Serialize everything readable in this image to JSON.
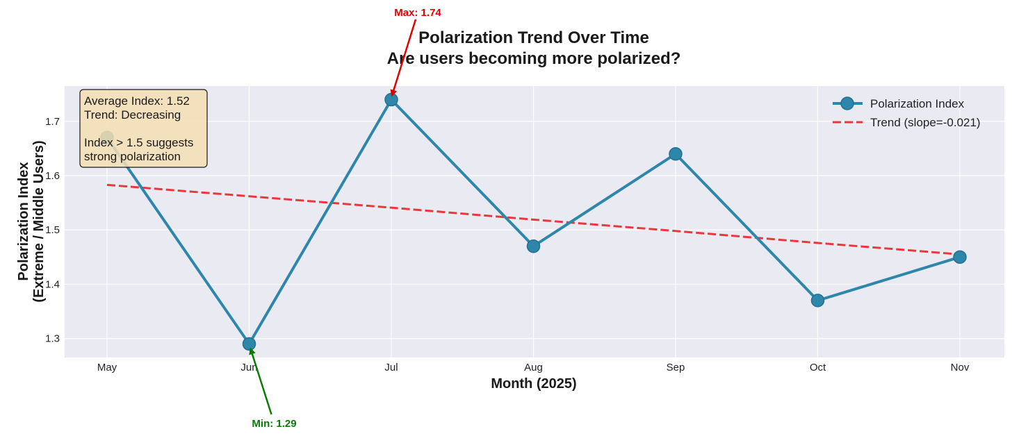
{
  "chart_data": {
    "type": "line",
    "title": "Polarization Trend Over Time",
    "subtitle": "Are users becoming more polarized?",
    "xlabel": "Month (2025)",
    "ylabel": [
      "Polarization Index",
      "(Extreme / Middle Users)"
    ],
    "categories": [
      "May",
      "Jun",
      "Jul",
      "Aug",
      "Sep",
      "Oct",
      "Nov"
    ],
    "ylim": [
      1.265,
      1.765
    ],
    "yticks": [
      1.3,
      1.4,
      1.5,
      1.6,
      1.7
    ],
    "ytick_labels": [
      "1.3",
      "1.4",
      "1.5",
      "1.6",
      "1.7"
    ],
    "grid": true,
    "legend_position": "top-right",
    "series": [
      {
        "name": "Polarization Index",
        "values": [
          1.67,
          1.29,
          1.74,
          1.47,
          1.64,
          1.37,
          1.45
        ],
        "color": "#2e86ab",
        "style": "solid-markers"
      },
      {
        "name": "Trend (slope=-0.021)",
        "values": [
          1.583,
          1.562,
          1.541,
          1.519,
          1.498,
          1.476,
          1.455
        ],
        "color": "#e8383b",
        "style": "dashed"
      }
    ],
    "info_box": [
      "Average Index: 1.52",
      "Trend: Decreasing",
      "",
      "Index > 1.5 suggests",
      "strong polarization"
    ],
    "annotations": [
      {
        "text": "Max: 1.74",
        "category": "Jul",
        "value": 1.74,
        "color": "#e00000"
      },
      {
        "text": "Min: 1.29",
        "category": "Jun",
        "value": 1.29,
        "color": "#0a7a0a"
      }
    ]
  }
}
